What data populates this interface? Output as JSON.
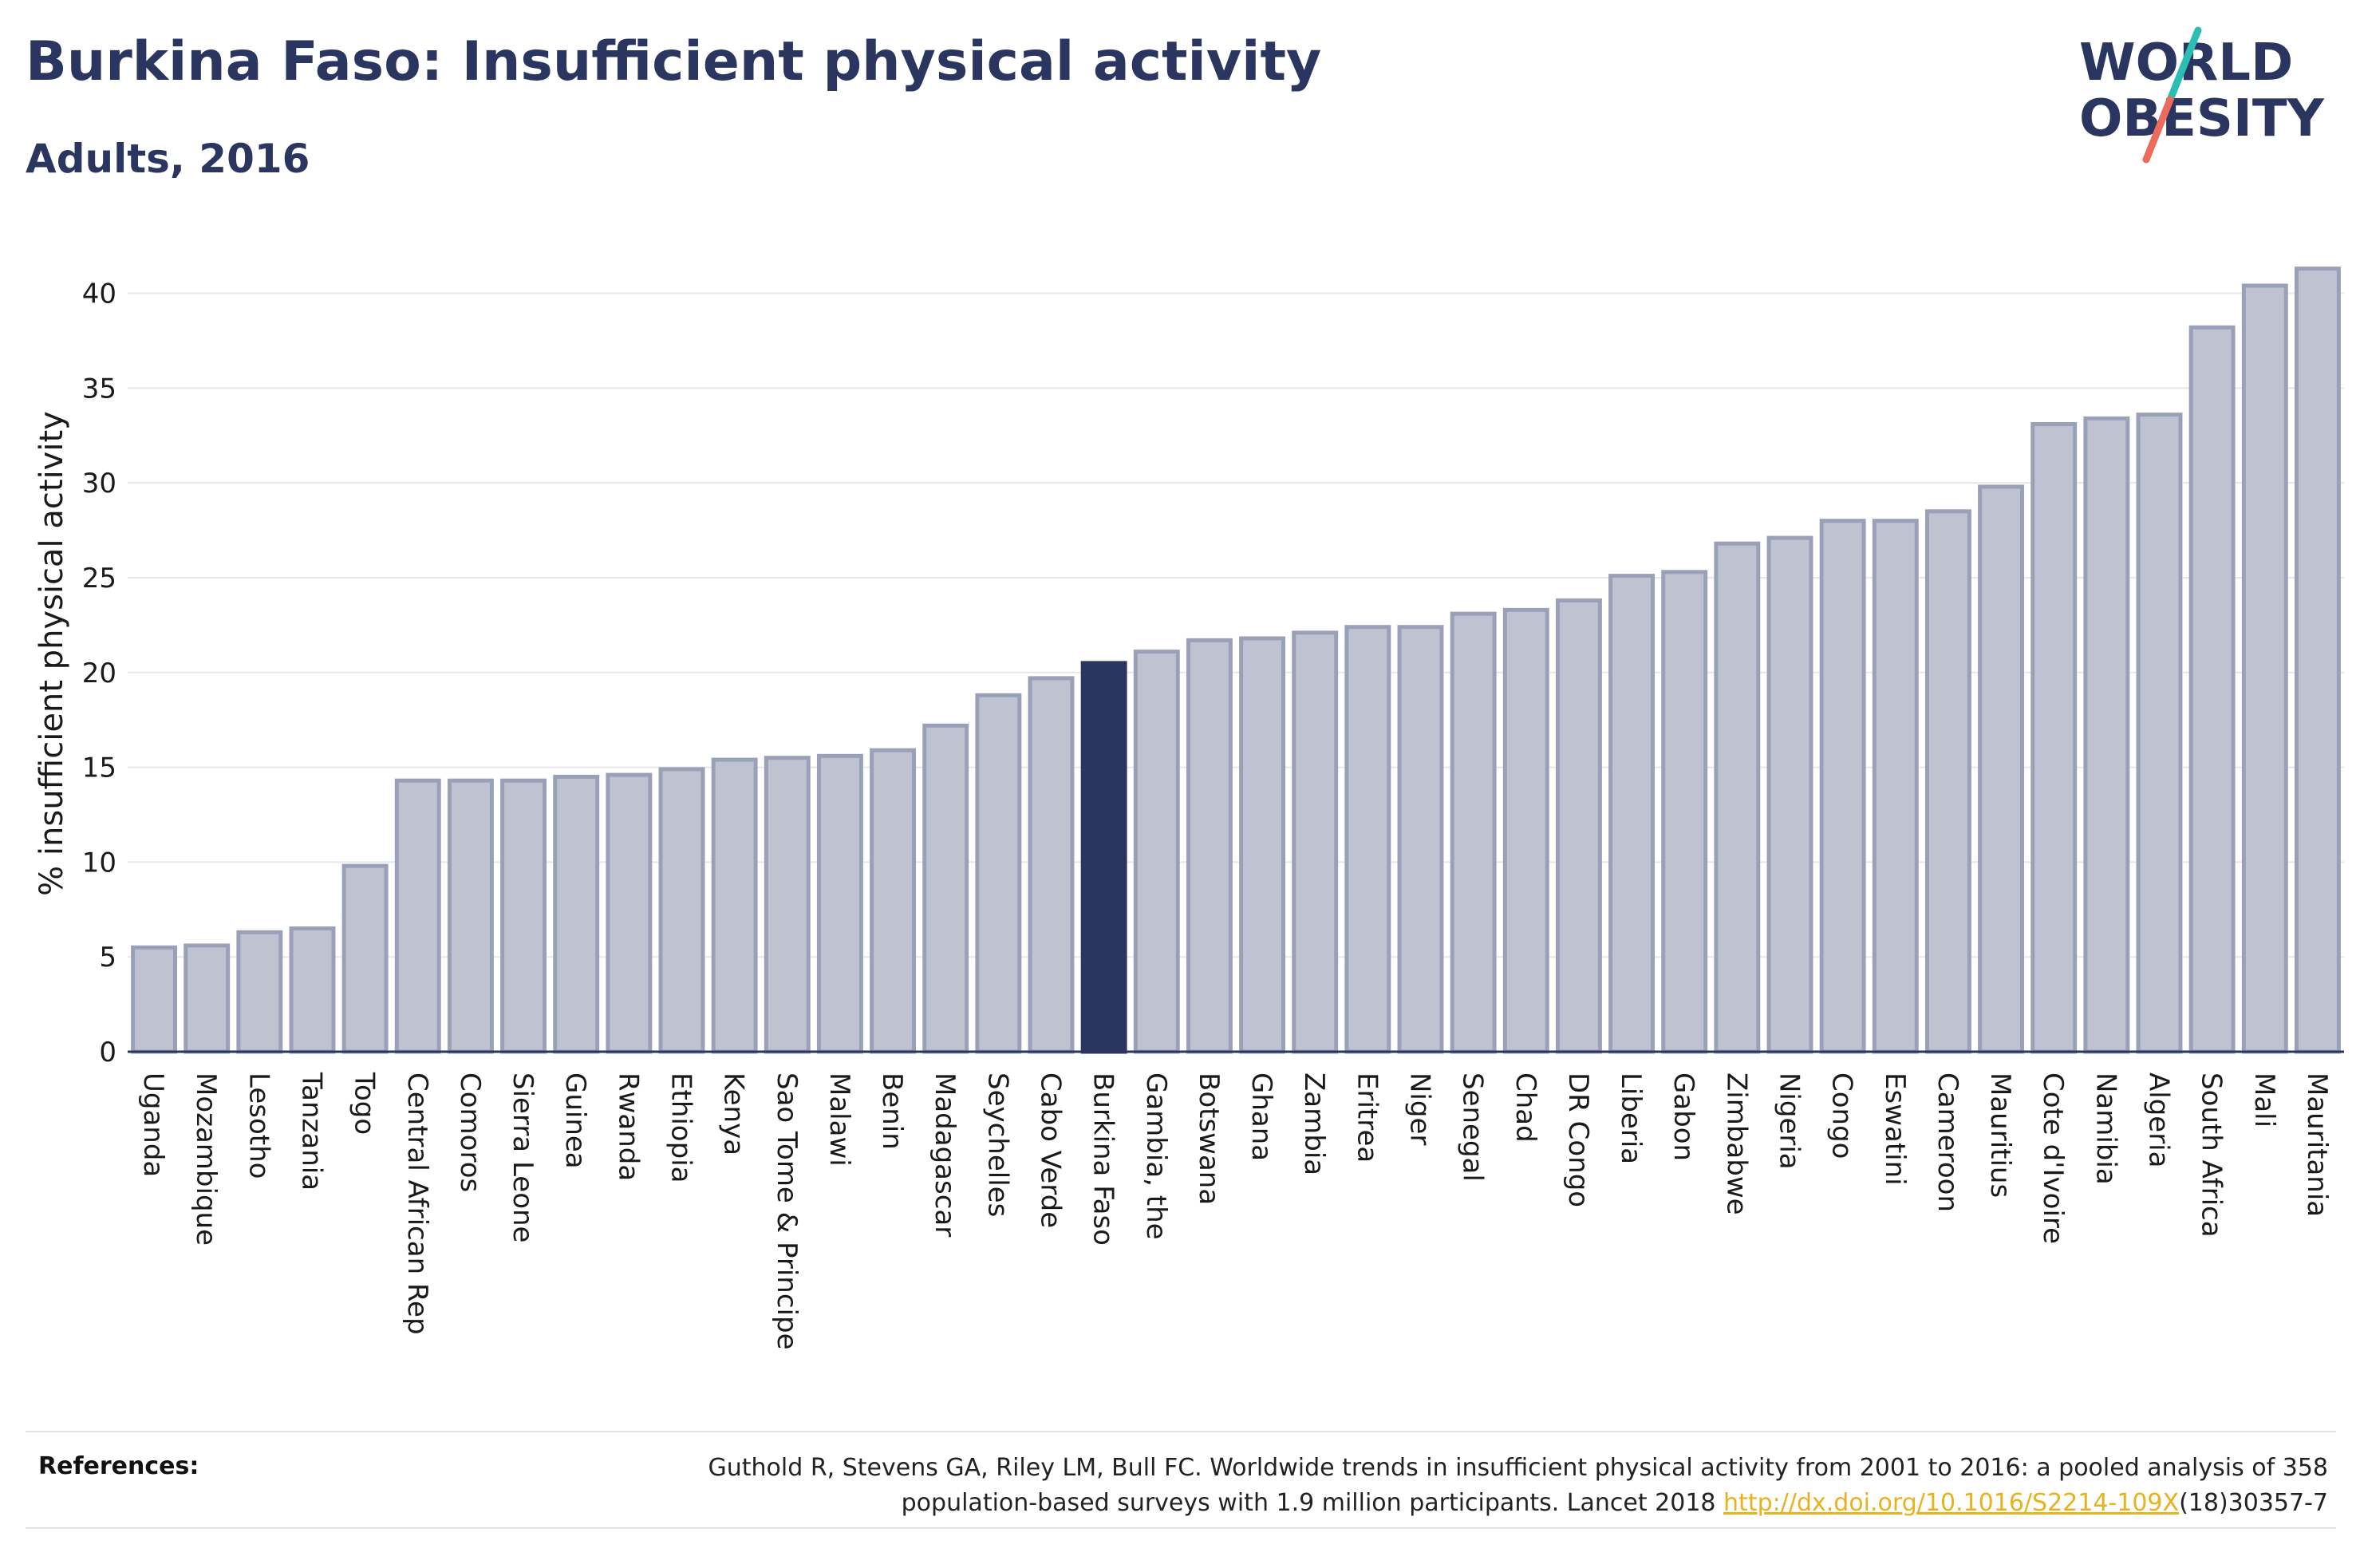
{
  "header": {
    "title": "Burkina Faso: Insufficient physical activity",
    "subtitle": "Adults, 2016"
  },
  "logo": {
    "line1": "WORLD",
    "line2": "OBESITY",
    "accent_teal": "#2bbfb3",
    "accent_coral": "#ec6b5a",
    "text_color": "#2b3660"
  },
  "colors": {
    "bar_fill": "#bfc3d1",
    "bar_stroke": "#9aa0b7",
    "highlight": "#2b3660",
    "grid": "#e8e8e8"
  },
  "chart_data": {
    "type": "bar",
    "title": "Burkina Faso: Insufficient physical activity",
    "subtitle": "Adults, 2016",
    "xlabel": "",
    "ylabel": "% insufficient physical activity",
    "ylim": [
      0,
      42
    ],
    "yticks": [
      0,
      5,
      10,
      15,
      20,
      25,
      30,
      35,
      40
    ],
    "grid": true,
    "highlight": "Burkina Faso",
    "categories": [
      "Uganda",
      "Mozambique",
      "Lesotho",
      "Tanzania",
      "Togo",
      "Central African Rep",
      "Comoros",
      "Sierra Leone",
      "Guinea",
      "Rwanda",
      "Ethiopia",
      "Kenya",
      "Sao Tome & Principe",
      "Malawi",
      "Benin",
      "Madagascar",
      "Seychelles",
      "Cabo Verde",
      "Burkina Faso",
      "Gambia, the",
      "Botswana",
      "Ghana",
      "Zambia",
      "Eritrea",
      "Niger",
      "Senegal",
      "Chad",
      "DR Congo",
      "Liberia",
      "Gabon",
      "Zimbabwe",
      "Nigeria",
      "Congo",
      "Eswatini",
      "Cameroon",
      "Mauritius",
      "Cote d'Ivoire",
      "Namibia",
      "Algeria",
      "South Africa",
      "Mali",
      "Mauritania"
    ],
    "values": [
      5.5,
      5.6,
      6.3,
      6.5,
      9.8,
      14.3,
      14.3,
      14.3,
      14.5,
      14.6,
      14.9,
      15.4,
      15.5,
      15.6,
      15.9,
      17.2,
      18.8,
      19.7,
      20.5,
      21.1,
      21.7,
      21.8,
      22.1,
      22.4,
      22.4,
      23.1,
      23.3,
      23.8,
      25.1,
      25.3,
      26.8,
      27.1,
      28.0,
      28.0,
      28.5,
      29.8,
      33.1,
      33.4,
      33.6,
      38.2,
      40.4,
      41.3
    ]
  },
  "references": {
    "label": "References:",
    "text_line1": "Guthold R, Stevens GA, Riley LM, Bull FC. Worldwide trends in insufficient physical activity from 2001 to 2016: a pooled analysis of 358",
    "text_line2_prefix": "population-based surveys with 1.9 million participants. Lancet 2018 ",
    "link": "http://dx.doi.org/10.1016/S2214-109X",
    "text_line2_suffix": "(18)30357-7"
  }
}
